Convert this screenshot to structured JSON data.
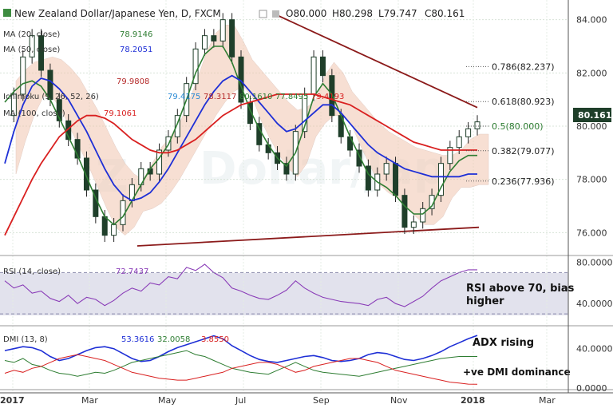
{
  "header": {
    "title": "New Zealand Dollar/Japanese Yen, D, FXCM",
    "ohlc": [
      "O80.000",
      "H80.298",
      "L79.747",
      "C80.161"
    ]
  },
  "indicators": {
    "ma20": {
      "label": "MA (20, close)",
      "value": "78.9146",
      "color": "#2e7d32"
    },
    "ma50": {
      "label": "MA (50, close)",
      "value": "78.2051",
      "color": "#1e2fd6"
    },
    "ichimoku": {
      "label": "Ichimoku (9, 26, 52, 26)",
      "values": [
        "79.9808",
        "79.4175",
        "78.3117",
        "80.1610",
        "77.8495",
        "79.4193"
      ]
    },
    "ma100": {
      "label": "MA (100, close)",
      "value": "79.1061",
      "color": "#d92020"
    },
    "rsi": {
      "label": "RSI (14, close)",
      "value": "72.7437"
    },
    "dmi": {
      "label": "DMI (13, 8)",
      "values": [
        "53.3616",
        "32.0058",
        "3.8550"
      ]
    }
  },
  "annotations": {
    "rsi_note": [
      "RSI above 70, bias",
      "higher"
    ],
    "adx_note": "ADX rising",
    "dmi_note": "+ve DMI dominance"
  },
  "fib_levels": [
    {
      "label": "0.786(82.237)",
      "value": 82.237
    },
    {
      "label": "0.618(80.923)",
      "value": 80.923
    },
    {
      "label": "0.5(80.000)",
      "value": 80.0
    },
    {
      "label": "0.382(79.077)",
      "value": 79.077
    },
    {
      "label": "0.236(77.936)",
      "value": 77.936
    }
  ],
  "price_badge": "80.161",
  "chart_data": {
    "type": "line",
    "title": "New Zealand Dollar/Japanese Yen, D, FXCM",
    "x_ticks": [
      "2017",
      "Mar",
      "May",
      "Jul",
      "Sep",
      "Nov",
      "2018",
      "Mar"
    ],
    "price_axis": {
      "ticks": [
        "84.000",
        "82.000",
        "80.000",
        "78.000",
        "76.000"
      ],
      "ylim": [
        75.2,
        84.5
      ]
    },
    "rsi_axis": {
      "ticks": [
        "80.0000",
        "40.0000"
      ],
      "ylim": [
        20,
        85
      ]
    },
    "dmi_axis": {
      "ticks": [
        "40.0000",
        "0.0000"
      ],
      "ylim": [
        0,
        60
      ]
    },
    "price_close": [
      80.4,
      81.2,
      82.6,
      83.4,
      82.1,
      81.0,
      80.2,
      79.5,
      78.8,
      77.6,
      76.6,
      75.9,
      76.3,
      77.2,
      77.8,
      78.4,
      78.2,
      79.1,
      79.6,
      80.4,
      81.6,
      82.9,
      83.4,
      83.2,
      84.0,
      82.6,
      80.9,
      80.1,
      79.3,
      79.0,
      78.6,
      78.2,
      79.8,
      81.2,
      82.6,
      81.9,
      80.4,
      79.6,
      79.1,
      78.5,
      77.6,
      78.2,
      78.6,
      77.4,
      76.2,
      76.4,
      76.9,
      77.4,
      78.6,
      79.2,
      79.6,
      79.9,
      80.161
    ],
    "series": [
      {
        "name": "MA (20, close)",
        "color": "#2e7d32",
        "values": [
          80.9,
          81.3,
          81.6,
          81.7,
          81.5,
          81.0,
          80.3,
          79.6,
          78.9,
          78.1,
          77.3,
          76.6,
          76.3,
          76.6,
          77.2,
          77.8,
          78.4,
          78.8,
          79.3,
          80.1,
          81.0,
          82.0,
          82.7,
          83.0,
          83.0,
          82.4,
          81.5,
          80.6,
          79.9,
          79.3,
          78.8,
          78.5,
          79.0,
          80.0,
          81.1,
          81.6,
          81.2,
          80.4,
          79.6,
          78.9,
          78.2,
          77.9,
          77.7,
          77.4,
          77.0,
          76.7,
          76.7,
          77.0,
          77.7,
          78.3,
          78.7,
          78.9,
          78.9
        ]
      },
      {
        "name": "MA (50, close)",
        "color": "#1e2fd6",
        "values": [
          78.6,
          79.8,
          80.8,
          81.5,
          81.8,
          81.7,
          81.4,
          81.0,
          80.4,
          79.8,
          79.1,
          78.4,
          77.8,
          77.4,
          77.2,
          77.3,
          77.5,
          77.9,
          78.4,
          79.0,
          79.6,
          80.2,
          80.8,
          81.3,
          81.7,
          81.9,
          81.7,
          81.3,
          80.9,
          80.5,
          80.1,
          79.8,
          79.9,
          80.2,
          80.5,
          80.8,
          80.8,
          80.5,
          80.1,
          79.7,
          79.3,
          79.0,
          78.8,
          78.6,
          78.4,
          78.3,
          78.2,
          78.1,
          78.1,
          78.1,
          78.1,
          78.2,
          78.2
        ]
      },
      {
        "name": "MA (100, close)",
        "color": "#d92020",
        "values": [
          75.9,
          76.6,
          77.3,
          78.0,
          78.6,
          79.1,
          79.6,
          79.9,
          80.2,
          80.4,
          80.4,
          80.3,
          80.1,
          79.8,
          79.5,
          79.3,
          79.1,
          79.0,
          79.0,
          79.1,
          79.3,
          79.5,
          79.8,
          80.1,
          80.4,
          80.6,
          80.8,
          80.9,
          81.0,
          81.1,
          81.2,
          81.2,
          81.2,
          81.2,
          81.2,
          81.1,
          81.0,
          80.9,
          80.8,
          80.6,
          80.4,
          80.2,
          80.0,
          79.8,
          79.6,
          79.4,
          79.3,
          79.2,
          79.1,
          79.1,
          79.1,
          79.1,
          79.1
        ]
      },
      {
        "name": "RSI (14, close)",
        "color": "#8a3db8",
        "values": [
          62,
          55,
          58,
          50,
          52,
          45,
          42,
          48,
          40,
          46,
          44,
          38,
          43,
          50,
          55,
          52,
          60,
          58,
          66,
          64,
          75,
          72,
          78,
          70,
          65,
          55,
          52,
          48,
          45,
          44,
          48,
          53,
          62,
          55,
          50,
          46,
          44,
          42,
          41,
          40,
          38,
          44,
          46,
          40,
          37,
          42,
          47,
          55,
          62,
          66,
          70,
          72.7,
          72.7
        ]
      },
      {
        "name": "ADX",
        "color": "#1e2fd6",
        "values": [
          38,
          40,
          42,
          41,
          38,
          32,
          28,
          30,
          34,
          38,
          41,
          42,
          40,
          35,
          30,
          27,
          28,
          32,
          37,
          41,
          44,
          47,
          50,
          53,
          50,
          43,
          38,
          33,
          29,
          27,
          26,
          28,
          30,
          32,
          33,
          31,
          28,
          27,
          28,
          30,
          34,
          36,
          35,
          32,
          29,
          28,
          30,
          33,
          37,
          42,
          46,
          50,
          53.4
        ]
      },
      {
        "name": "+DI",
        "color": "#2e7d32",
        "values": [
          28,
          26,
          30,
          24,
          22,
          18,
          15,
          14,
          12,
          14,
          16,
          15,
          18,
          22,
          26,
          28,
          30,
          32,
          34,
          36,
          38,
          34,
          32,
          28,
          24,
          20,
          18,
          16,
          15,
          14,
          18,
          22,
          26,
          22,
          18,
          16,
          15,
          14,
          13,
          12,
          14,
          16,
          18,
          20,
          22,
          24,
          26,
          28,
          30,
          31,
          32,
          32,
          32
        ]
      },
      {
        "name": "-DI",
        "color": "#d92020",
        "values": [
          15,
          18,
          16,
          20,
          22,
          26,
          30,
          32,
          34,
          32,
          30,
          28,
          24,
          20,
          16,
          14,
          12,
          10,
          9,
          8,
          8,
          10,
          12,
          14,
          16,
          20,
          22,
          24,
          26,
          26,
          24,
          20,
          16,
          18,
          22,
          24,
          26,
          28,
          30,
          30,
          28,
          26,
          22,
          18,
          16,
          14,
          12,
          10,
          8,
          6,
          5,
          4,
          3.9
        ]
      }
    ]
  }
}
